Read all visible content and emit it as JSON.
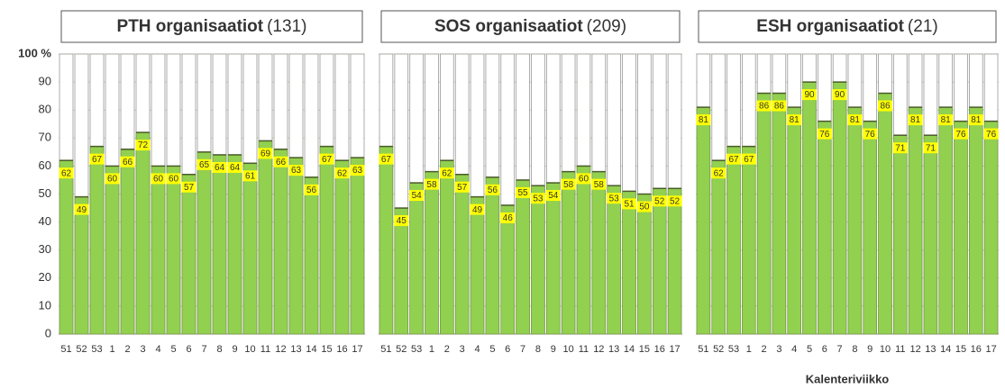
{
  "chart_data": [
    {
      "type": "bar",
      "title": "PTH organisaatiot",
      "subtitle": "(131)",
      "categories": [
        "51",
        "52",
        "53",
        "1",
        "2",
        "3",
        "4",
        "5",
        "6",
        "7",
        "8",
        "9",
        "10",
        "11",
        "12",
        "13",
        "14",
        "15",
        "16",
        "17"
      ],
      "values": [
        62,
        49,
        67,
        60,
        66,
        72,
        60,
        60,
        57,
        65,
        64,
        64,
        61,
        69,
        66,
        63,
        56,
        67,
        62,
        63
      ],
      "color": "#92d050",
      "ylim": [
        0,
        100
      ],
      "yticks": [
        0,
        10,
        20,
        30,
        40,
        50,
        60,
        70,
        80,
        90,
        {
          "value": 100,
          "label": "100 %"
        }
      ],
      "grid": true
    },
    {
      "type": "bar",
      "title": "SOS organisaatiot",
      "subtitle": "(209)",
      "categories": [
        "51",
        "52",
        "53",
        "1",
        "2",
        "3",
        "4",
        "5",
        "6",
        "7",
        "8",
        "9",
        "10",
        "11",
        "12",
        "13",
        "14",
        "15",
        "16",
        "17"
      ],
      "values": [
        67,
        45,
        54,
        58,
        62,
        57,
        49,
        56,
        46,
        55,
        53,
        54,
        58,
        60,
        58,
        53,
        51,
        50,
        52,
        52
      ],
      "color": "#92d050",
      "ylim": [
        0,
        100
      ],
      "yticks": [
        0,
        10,
        20,
        30,
        40,
        50,
        60,
        70,
        80,
        90,
        {
          "value": 100,
          "label": "100 %"
        }
      ],
      "grid": true
    },
    {
      "type": "bar",
      "title": "ESH organisaatiot",
      "subtitle": "(21)",
      "categories": [
        "51",
        "52",
        "53",
        "1",
        "2",
        "3",
        "4",
        "5",
        "6",
        "7",
        "8",
        "9",
        "10",
        "11",
        "12",
        "13",
        "14",
        "15",
        "16",
        "17"
      ],
      "values": [
        81,
        62,
        67,
        67,
        86,
        86,
        81,
        90,
        76,
        90,
        81,
        76,
        86,
        71,
        81,
        71,
        81,
        76,
        81,
        76
      ],
      "color": "#92d050",
      "ylim": [
        0,
        100
      ],
      "yticks": [
        0,
        10,
        20,
        30,
        40,
        50,
        60,
        70,
        80,
        90,
        {
          "value": 100,
          "label": "100 %"
        }
      ],
      "grid": true,
      "x_label": "Kalenteriviikko"
    }
  ]
}
